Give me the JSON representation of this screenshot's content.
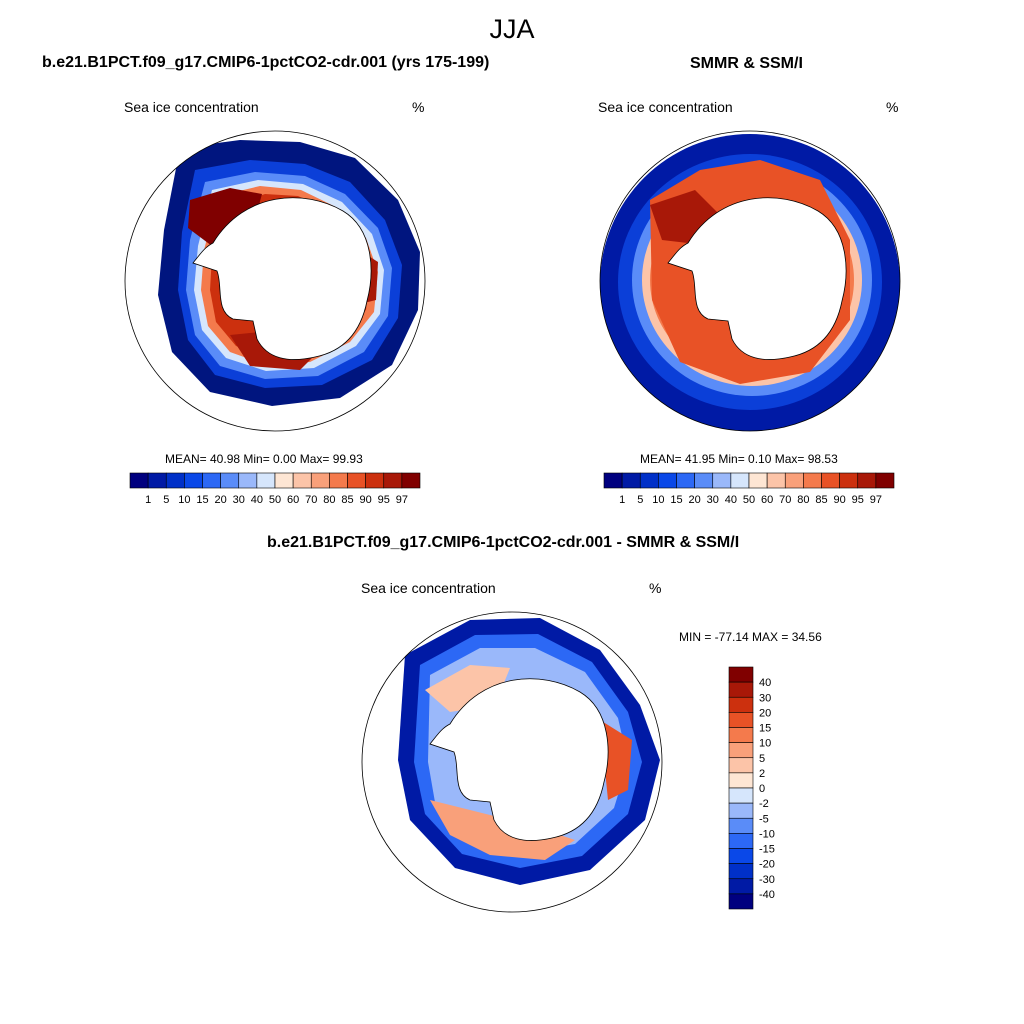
{
  "figure": {
    "title": "JJA"
  },
  "panels": [
    {
      "id": "model",
      "title": "b.e21.B1PCT.f09_g17.CMIP6-1pctCO2-cdr.001 (yrs 175-199)",
      "left_label": "Sea ice concentration",
      "right_label": "%",
      "stats": "MEAN=  40.98  Min=   0.00  Max=  99.93"
    },
    {
      "id": "obs",
      "title": "SMMR & SSM/I",
      "left_label": "Sea ice concentration",
      "right_label": "%",
      "stats": "MEAN=  41.95  Min=   0.10  Max=  98.53"
    },
    {
      "id": "diff",
      "title": "b.e21.B1PCT.f09_g17.CMIP6-1pctCO2-cdr.001 - SMMR & SSM/I",
      "left_label": "Sea ice concentration",
      "right_label": "%",
      "stats": "MIN = -77.14 MAX =  34.56"
    }
  ],
  "colorbar_horizontal": {
    "colors": [
      "#00007f",
      "#001aa5",
      "#0030c8",
      "#0a48e8",
      "#2c68f5",
      "#5a8cf8",
      "#9ab8fa",
      "#d6e6fc",
      "#fee6d4",
      "#fcc4a8",
      "#f9a07a",
      "#f47a4c",
      "#e85226",
      "#cc300e",
      "#a81808",
      "#800000"
    ],
    "labels": [
      "1",
      "5",
      "10",
      "15",
      "20",
      "30",
      "40",
      "50",
      "60",
      "70",
      "80",
      "85",
      "90",
      "95",
      "97"
    ]
  },
  "colorbar_vertical": {
    "colors": [
      "#800000",
      "#a81808",
      "#cc300e",
      "#e85226",
      "#f47a4c",
      "#f9a07a",
      "#fcc4a8",
      "#fee6d4",
      "#d6e6fc",
      "#9ab8fa",
      "#5a8cf8",
      "#2c68f5",
      "#0a48e8",
      "#0030c8",
      "#001aa5",
      "#00007f"
    ],
    "labels": [
      "40",
      "30",
      "20",
      "15",
      "10",
      "5",
      "2",
      "0",
      "-2",
      "-5",
      "-10",
      "-15",
      "-20",
      "-30",
      "-40"
    ]
  }
}
